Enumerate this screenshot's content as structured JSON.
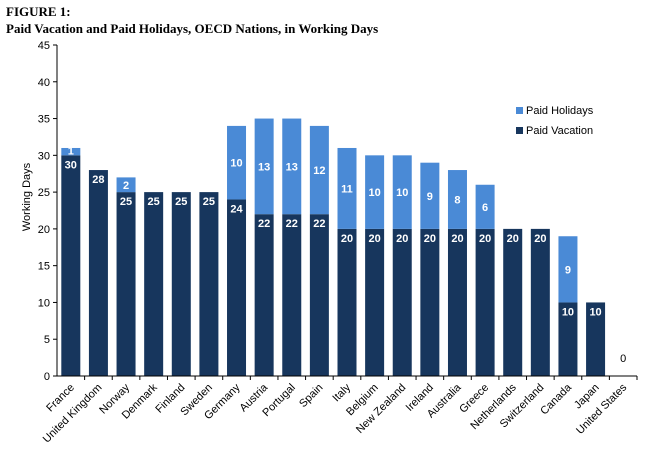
{
  "figure_label": "FIGURE 1:",
  "title": "Paid Vacation and Paid Holidays, OECD Nations, in Working Days",
  "colors": {
    "paid_vacation": "#17365d",
    "paid_holidays": "#4a8ad6",
    "axis": "#000000"
  },
  "chart_data": {
    "type": "bar",
    "stacked": true,
    "title": "Paid Vacation and Paid Holidays, OECD Nations, in Working Days",
    "xlabel": "",
    "ylabel": "Working Days",
    "ylim": [
      0,
      45
    ],
    "yticks": [
      0,
      5,
      10,
      15,
      20,
      25,
      30,
      35,
      40,
      45
    ],
    "grid": false,
    "legend_position": "right",
    "categories": [
      "France",
      "United Kingdom",
      "Norway",
      "Denmark",
      "Finland",
      "Sweden",
      "Germany",
      "Austria",
      "Portugal",
      "Spain",
      "Italy",
      "Belgium",
      "New Zealand",
      "Ireland",
      "Australia",
      "Greece",
      "Netherlands",
      "Switzerland",
      "Canada",
      "Japan",
      "United States"
    ],
    "series": [
      {
        "name": "Paid Vacation",
        "values": [
          30,
          28,
          25,
          25,
          25,
          25,
          24,
          22,
          22,
          22,
          20,
          20,
          20,
          20,
          20,
          20,
          20,
          20,
          10,
          10,
          0
        ]
      },
      {
        "name": "Paid Holidays",
        "values": [
          1,
          0,
          2,
          0,
          0,
          0,
          10,
          13,
          13,
          12,
          11,
          10,
          10,
          9,
          8,
          6,
          0,
          0,
          9,
          0,
          0
        ]
      }
    ]
  }
}
